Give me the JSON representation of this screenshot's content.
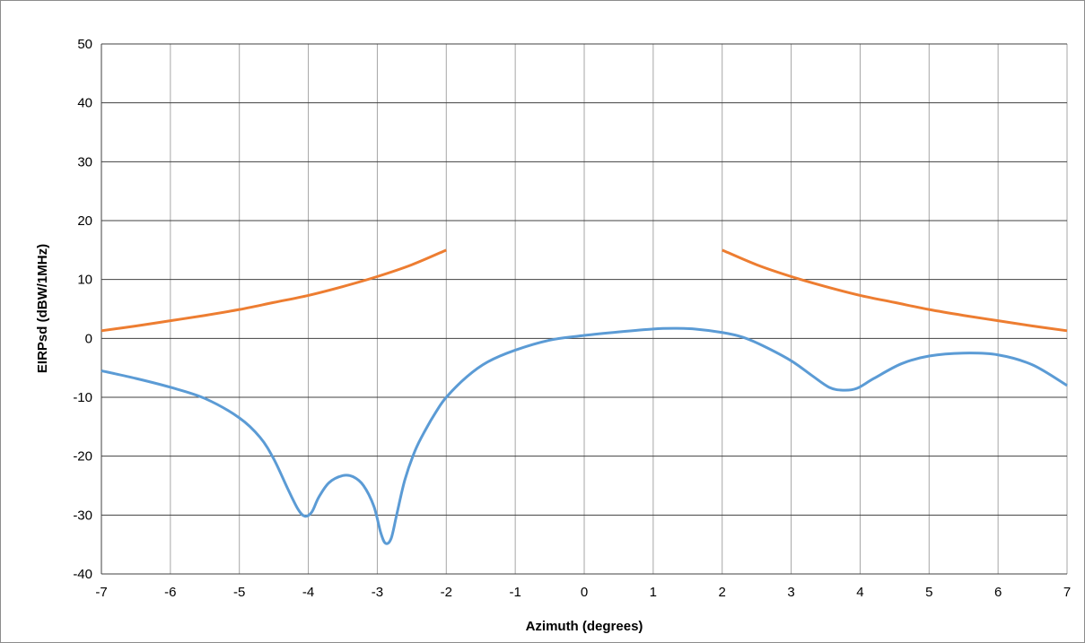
{
  "chart_data": {
    "type": "line",
    "title": "",
    "xlabel": "Azimuth (degrees)",
    "ylabel": "EIRPsd (dBW/1MHz)",
    "xlim": [
      -7,
      7
    ],
    "ylim": [
      -40,
      50
    ],
    "x_ticks": [
      -7,
      -6,
      -5,
      -4,
      -3,
      -2,
      -1,
      0,
      1,
      2,
      3,
      4,
      5,
      6,
      7
    ],
    "y_ticks": [
      -40,
      -30,
      -20,
      -10,
      0,
      10,
      20,
      30,
      40,
      50
    ],
    "x_tick_labels": [
      "-7",
      "-6",
      "-5",
      "-4",
      "-3",
      "-2",
      "-1",
      "0",
      "1",
      "2",
      "3",
      "4",
      "5",
      "6",
      "7"
    ],
    "y_tick_labels": [
      "-40",
      "-30",
      "-20",
      "-10",
      "0",
      "10",
      "20",
      "30",
      "40",
      "50"
    ],
    "grid": true,
    "legend": "none",
    "series": [
      {
        "color": "#5b9bd5",
        "points": [
          [
            -7,
            -5.5
          ],
          [
            -6.5,
            -6.8
          ],
          [
            -6,
            -8.3
          ],
          [
            -5.5,
            -10.2
          ],
          [
            -5,
            -13.5
          ],
          [
            -4.7,
            -16.8
          ],
          [
            -4.5,
            -20.5
          ],
          [
            -4.3,
            -25.5
          ],
          [
            -4.15,
            -29.0
          ],
          [
            -4.05,
            -30.2
          ],
          [
            -3.95,
            -29.5
          ],
          [
            -3.85,
            -27.0
          ],
          [
            -3.7,
            -24.5
          ],
          [
            -3.5,
            -23.3
          ],
          [
            -3.35,
            -23.5
          ],
          [
            -3.2,
            -25.0
          ],
          [
            -3.05,
            -28.5
          ],
          [
            -2.95,
            -33.0
          ],
          [
            -2.88,
            -34.8
          ],
          [
            -2.8,
            -34.0
          ],
          [
            -2.72,
            -30.0
          ],
          [
            -2.6,
            -24.0
          ],
          [
            -2.45,
            -19.0
          ],
          [
            -2.3,
            -15.5
          ],
          [
            -2.15,
            -12.5
          ],
          [
            -2,
            -10.0
          ],
          [
            -1.7,
            -6.5
          ],
          [
            -1.4,
            -4.0
          ],
          [
            -1,
            -2.0
          ],
          [
            -0.5,
            -0.3
          ],
          [
            0,
            0.5
          ],
          [
            0.5,
            1.1
          ],
          [
            1,
            1.6
          ],
          [
            1.3,
            1.7
          ],
          [
            1.6,
            1.6
          ],
          [
            2,
            1.0
          ],
          [
            2.3,
            0.2
          ],
          [
            2.6,
            -1.3
          ],
          [
            3,
            -3.8
          ],
          [
            3.3,
            -6.3
          ],
          [
            3.55,
            -8.3
          ],
          [
            3.75,
            -8.8
          ],
          [
            3.95,
            -8.5
          ],
          [
            4.2,
            -6.8
          ],
          [
            4.6,
            -4.3
          ],
          [
            5,
            -3.0
          ],
          [
            5.5,
            -2.5
          ],
          [
            6,
            -2.8
          ],
          [
            6.5,
            -4.5
          ],
          [
            7,
            -8.0
          ]
        ]
      },
      {
        "color": "#ed7d31",
        "points": [
          [
            -7,
            1.3
          ],
          [
            -6.5,
            2.1
          ],
          [
            -6,
            3.0
          ],
          [
            -5.5,
            3.9
          ],
          [
            -5,
            4.9
          ],
          [
            -4.5,
            6.1
          ],
          [
            -4,
            7.3
          ],
          [
            -3.5,
            8.8
          ],
          [
            -3,
            10.5
          ],
          [
            -2.5,
            12.5
          ],
          [
            -2,
            15.0
          ]
        ]
      },
      {
        "color": "#ed7d31",
        "points": [
          [
            2,
            15.0
          ],
          [
            2.5,
            12.5
          ],
          [
            3,
            10.5
          ],
          [
            3.5,
            8.8
          ],
          [
            4,
            7.3
          ],
          [
            4.5,
            6.1
          ],
          [
            5,
            4.9
          ],
          [
            5.5,
            3.9
          ],
          [
            6,
            3.0
          ],
          [
            6.5,
            2.1
          ],
          [
            7,
            1.3
          ]
        ]
      }
    ]
  }
}
